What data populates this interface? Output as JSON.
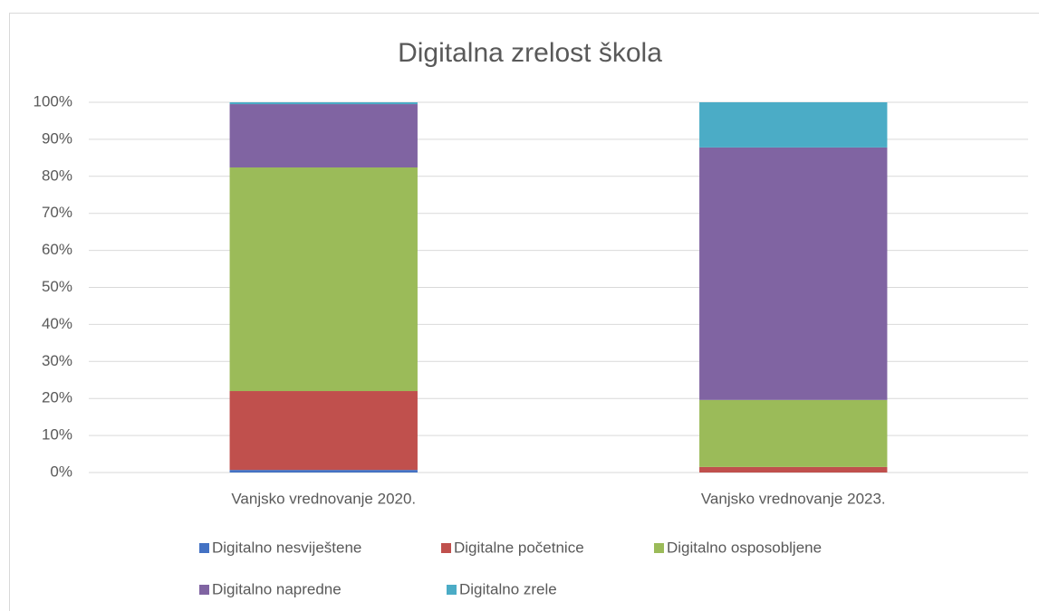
{
  "chart_data": {
    "type": "stacked_bar",
    "title": "Digitalna zrelost škola",
    "categories": [
      "Vanjsko vrednovanje 2020.",
      "Vanjsko vrednovanje 2023."
    ],
    "series": [
      {
        "name": "Digitalno nesviještene",
        "color": "#4472c4",
        "values": [
          0.7,
          0
        ]
      },
      {
        "name": "Digitalne početnice",
        "color": "#c0504d",
        "values": [
          21.3,
          1.5
        ]
      },
      {
        "name": "Digitalno osposobljene",
        "color": "#9bbb59",
        "values": [
          60.4,
          18.1
        ]
      },
      {
        "name": "Digitalno napredne",
        "color": "#8064a2",
        "values": [
          17.1,
          68.2
        ]
      },
      {
        "name": "Digitalno zrele",
        "color": "#4bacc6",
        "values": [
          0.5,
          12.2
        ]
      }
    ],
    "ylim": [
      0,
      100
    ],
    "yticks": [
      {
        "value": 0,
        "label": "0%"
      },
      {
        "value": 10,
        "label": "10%"
      },
      {
        "value": 20,
        "label": "20%"
      },
      {
        "value": 30,
        "label": "30%"
      },
      {
        "value": 40,
        "label": "40%"
      },
      {
        "value": 50,
        "label": "50%"
      },
      {
        "value": 60,
        "label": "60%"
      },
      {
        "value": 70,
        "label": "70%"
      },
      {
        "value": 80,
        "label": "80%"
      },
      {
        "value": 90,
        "label": "90%"
      },
      {
        "value": 100,
        "label": "100%"
      }
    ],
    "grid": true,
    "legend": "bottom"
  }
}
